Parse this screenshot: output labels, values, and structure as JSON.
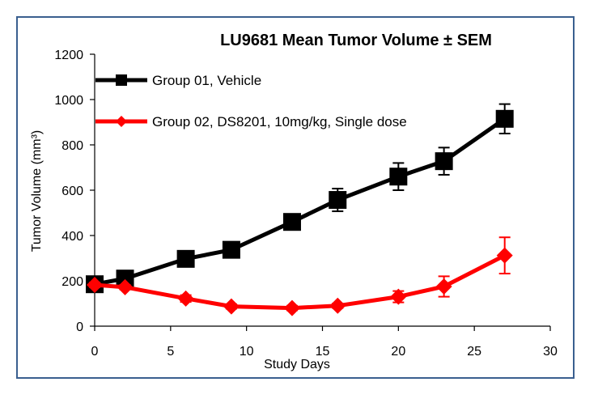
{
  "chart_data": {
    "type": "line",
    "title": "LU9681 Mean Tumor Volume ± SEM",
    "xlabel": "Study Days",
    "ylabel": "Tumor Volume (mm³)",
    "xlim": [
      0,
      30
    ],
    "ylim": [
      0,
      1200
    ],
    "xticks": [
      0,
      5,
      10,
      15,
      20,
      25,
      30
    ],
    "yticks": [
      0,
      200,
      400,
      600,
      800,
      1000,
      1200
    ],
    "grid": false,
    "legend_position": "top-left",
    "series": [
      {
        "name": "Group 01, Vehicle",
        "color": "#000000",
        "marker": "square",
        "x": [
          0,
          2,
          6,
          9,
          13,
          16,
          20,
          23,
          27
        ],
        "y": [
          185,
          210,
          297,
          337,
          460,
          557,
          660,
          728,
          915
        ],
        "err": [
          10,
          15,
          15,
          15,
          15,
          50,
          60,
          60,
          65
        ]
      },
      {
        "name": "Group 02, DS8201, 10mg/kg, Single dose",
        "color": "#ff0000",
        "marker": "diamond",
        "x": [
          0,
          2,
          6,
          9,
          13,
          16,
          20,
          23,
          27
        ],
        "y": [
          182,
          172,
          122,
          87,
          80,
          90,
          130,
          175,
          312
        ],
        "err": [
          10,
          10,
          15,
          10,
          10,
          10,
          25,
          45,
          80
        ]
      }
    ]
  }
}
